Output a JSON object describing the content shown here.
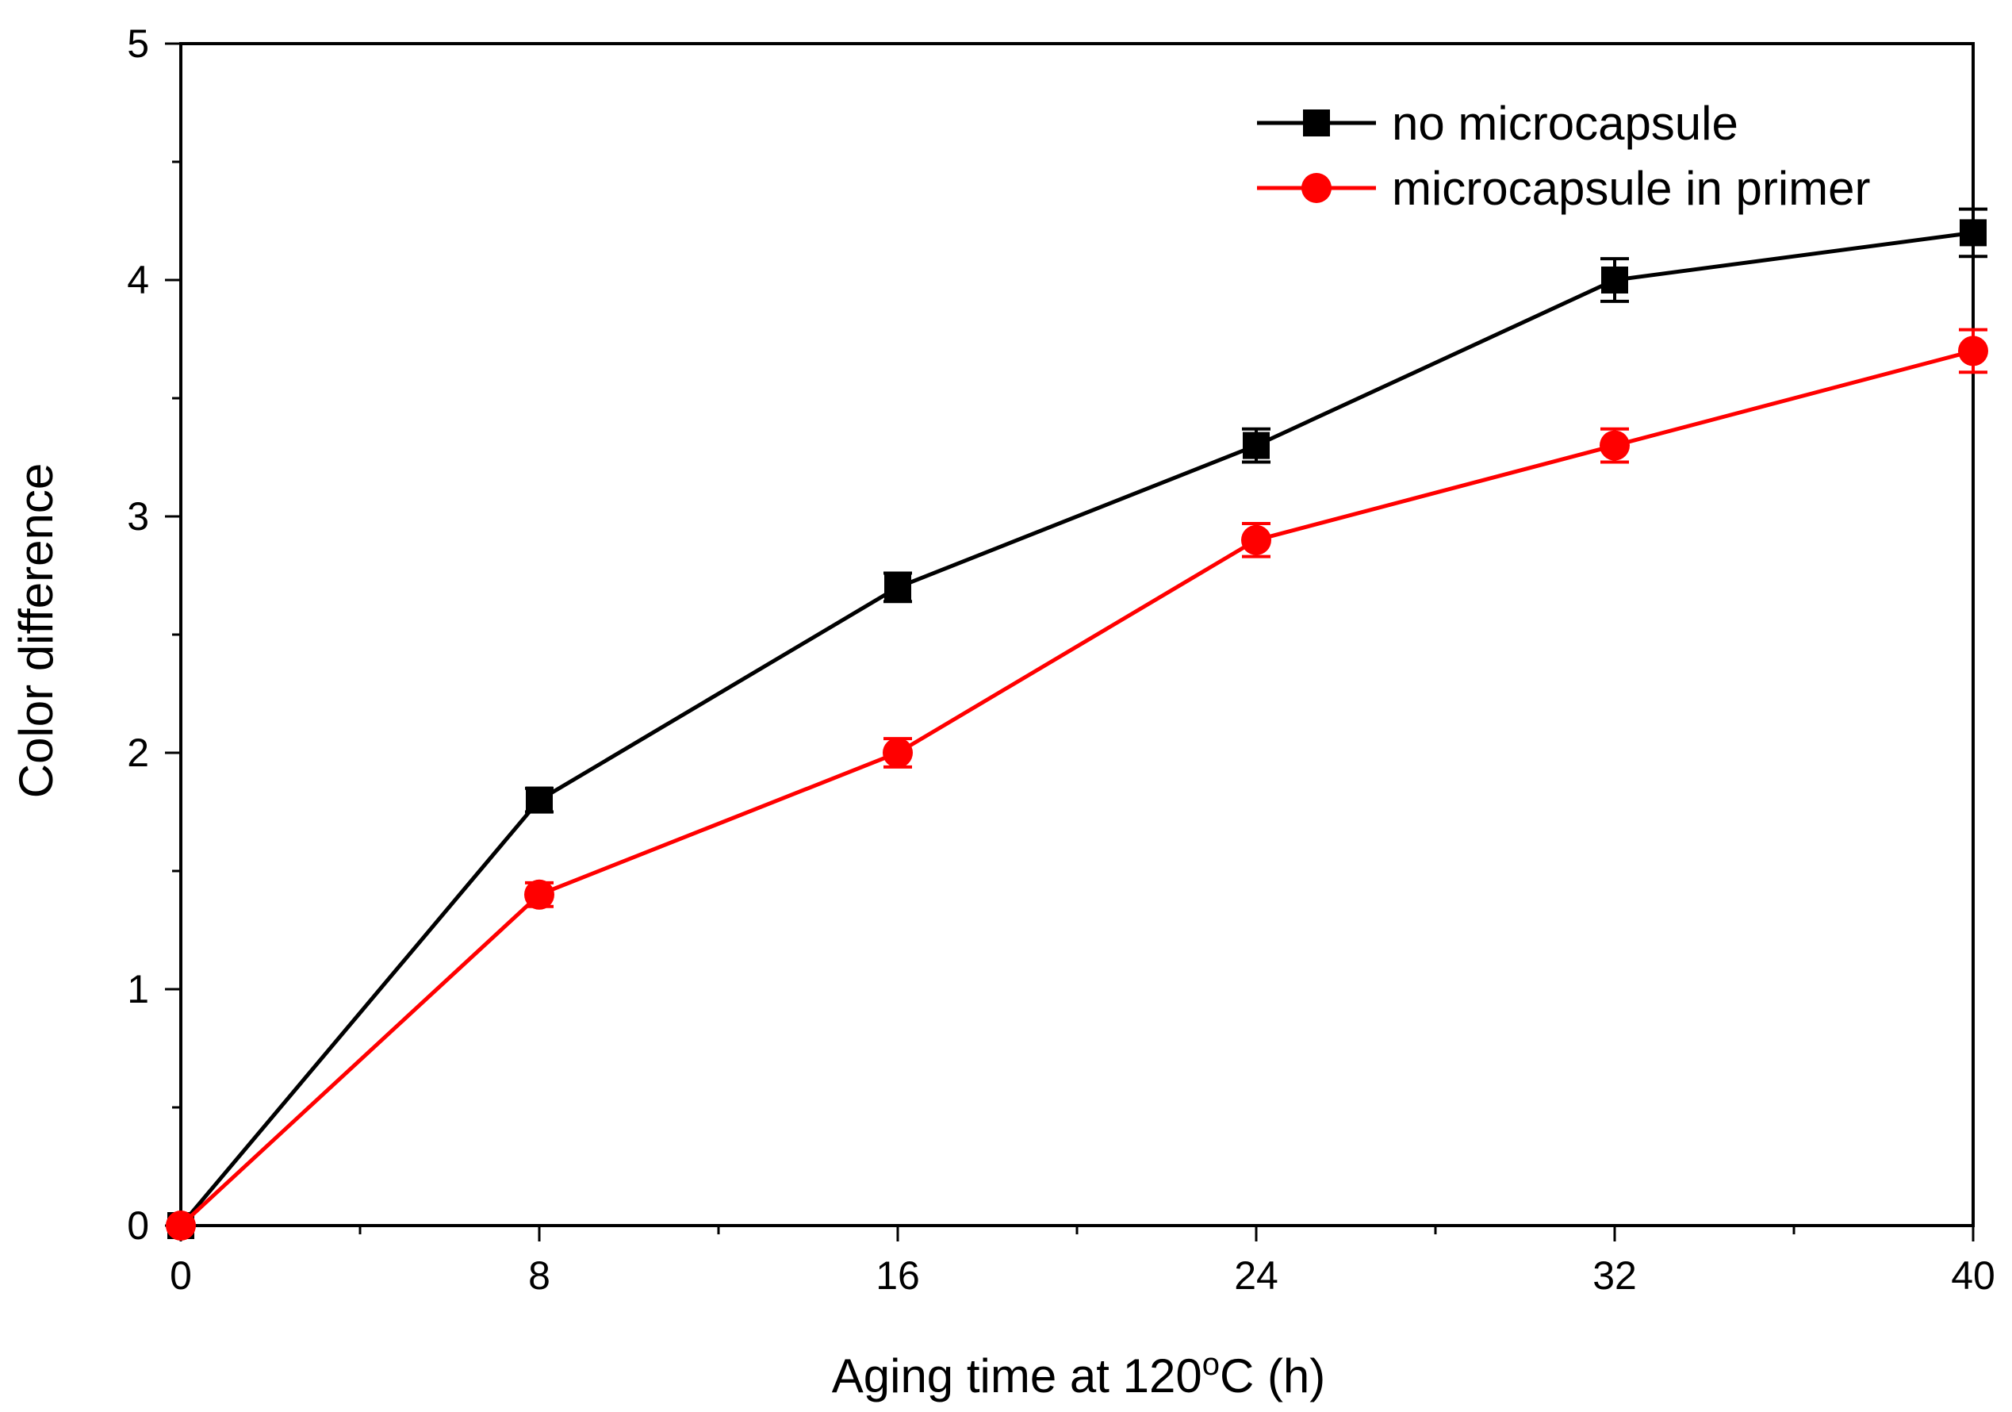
{
  "chart_data": {
    "type": "line",
    "title": "",
    "xlabel": "Aging time at 120",
    "xlabel_sup": "o",
    "xlabel_suffix": "C (h)",
    "ylabel": "Color difference",
    "x": [
      0,
      8,
      16,
      24,
      32,
      40
    ],
    "xlim": [
      0,
      40
    ],
    "ylim": [
      0,
      5
    ],
    "x_ticks": [
      0,
      8,
      16,
      24,
      32,
      40
    ],
    "x_tick_labels": [
      "0",
      "8",
      "16",
      "24",
      "32",
      "40"
    ],
    "y_ticks": [
      0,
      1,
      2,
      3,
      4,
      5
    ],
    "y_tick_labels": [
      "0",
      "1",
      "2",
      "3",
      "4",
      "5"
    ],
    "grid": false,
    "legend_position": "top-right",
    "series": [
      {
        "name": "no microcapsule",
        "marker": "square",
        "color": "#000000",
        "values": [
          0,
          1.8,
          2.7,
          3.3,
          4.0,
          4.2
        ],
        "errors": [
          0,
          0.05,
          0.06,
          0.07,
          0.09,
          0.1
        ]
      },
      {
        "name": "microcapsule in primer",
        "marker": "circle",
        "color": "#ff0000",
        "values": [
          0,
          1.4,
          2.0,
          2.9,
          3.3,
          3.7
        ],
        "errors": [
          0,
          0.05,
          0.06,
          0.07,
          0.07,
          0.09
        ]
      }
    ]
  }
}
